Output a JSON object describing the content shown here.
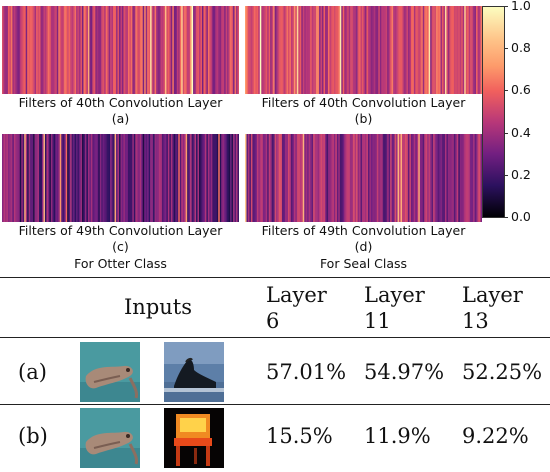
{
  "heatmaps": [
    {
      "id": "a",
      "caption": "Filters of 40th Convolution Layer",
      "sub": "(a)",
      "seed": 11,
      "bias": 0.48
    },
    {
      "id": "b",
      "caption": "Filters of 40th Convolution Layer",
      "sub": "(b)",
      "seed": 23,
      "bias": 0.5
    },
    {
      "id": "c",
      "caption": "Filters of 49th Convolution Layer",
      "sub": "(c)",
      "seed": 37,
      "bias": 0.28
    },
    {
      "id": "d",
      "caption": "Filters of 49th Convolution Layer",
      "sub": "(d)",
      "seed": 41,
      "bias": 0.38
    }
  ],
  "class_labels": {
    "left": "For Otter Class",
    "right": "For Seal Class"
  },
  "colorbar": {
    "ticks": [
      "1.0",
      "0.8",
      "0.6",
      "0.4",
      "0.2",
      "0.0"
    ],
    "colormap": "magma"
  },
  "table": {
    "inputs_header": "Inputs",
    "layer_headers": [
      {
        "line1": "Layer",
        "line2": "6"
      },
      {
        "line1": "Layer",
        "line2": "11"
      },
      {
        "line1": "Layer",
        "line2": "13"
      }
    ],
    "rows": [
      {
        "label": "(a)",
        "values": [
          "57.01%",
          "54.97%",
          "52.25%"
        ],
        "second_image": "seal-photo"
      },
      {
        "label": "(b)",
        "values": [
          "15.5%",
          "11.9%",
          "9.22%"
        ],
        "second_image": "chair-photo"
      }
    ]
  }
}
